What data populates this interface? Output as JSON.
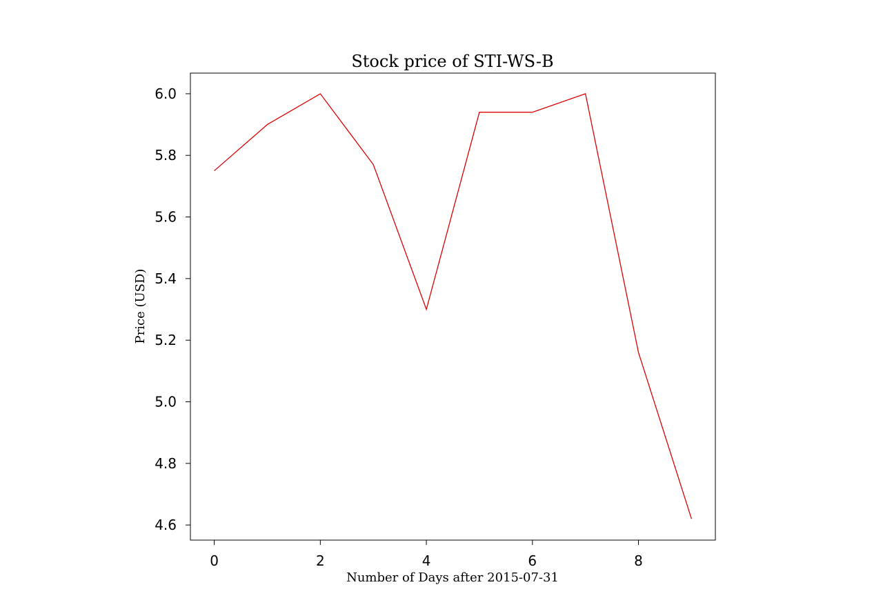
{
  "chart_data": {
    "type": "line",
    "title": "Stock price of STI-WS-B",
    "xlabel": "Number of Days after 2015-07-31",
    "ylabel": "Price (USD)",
    "x": [
      0,
      1,
      2,
      3,
      4,
      5,
      6,
      7,
      8,
      9
    ],
    "series": [
      {
        "values": [
          5.75,
          5.9,
          6.0,
          5.77,
          5.3,
          5.94,
          5.94,
          6.0,
          5.16,
          4.62
        ],
        "color": "#dd0000"
      }
    ],
    "xlim": [
      -0.45,
      9.45
    ],
    "ylim": [
      4.551,
      6.067
    ],
    "xticks": [
      {
        "value": 0,
        "label": "0"
      },
      {
        "value": 2,
        "label": "2"
      },
      {
        "value": 4,
        "label": "4"
      },
      {
        "value": 6,
        "label": "6"
      },
      {
        "value": 8,
        "label": "8"
      }
    ],
    "yticks": [
      {
        "value": 4.6,
        "label": "4.6"
      },
      {
        "value": 4.8,
        "label": "4.8"
      },
      {
        "value": 5.0,
        "label": "5.0"
      },
      {
        "value": 5.2,
        "label": "5.2"
      },
      {
        "value": 5.4,
        "label": "5.4"
      },
      {
        "value": 5.6,
        "label": "5.6"
      },
      {
        "value": 5.8,
        "label": "5.8"
      },
      {
        "value": 6.0,
        "label": "6.0"
      }
    ],
    "grid": false,
    "legend": "none"
  }
}
